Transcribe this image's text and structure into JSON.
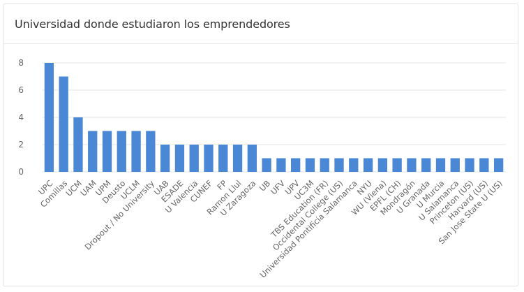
{
  "card": {
    "title": "Universidad donde estudiaron los emprendedores"
  },
  "colors": {
    "bar": "#4a87d4",
    "grid": "#e6e6e6",
    "axis_text": "#666666"
  },
  "chart_data": {
    "type": "bar",
    "title": "Universidad donde estudiaron los emprendedores",
    "xlabel": "",
    "ylabel": "",
    "ylim": [
      0,
      8
    ],
    "yticks": [
      0,
      2,
      4,
      6,
      8
    ],
    "grid": true,
    "categories": [
      "UPC",
      "Comillas",
      "UCM",
      "UAM",
      "UPM",
      "Deusto",
      "UCLM",
      "Dropout / No University",
      "UAB",
      "ESADE",
      "U Valencia",
      "CUNEF",
      "FP",
      "Ramon Llul",
      "U Zaragoza",
      "UB",
      "UFV",
      "UPV",
      "UC3M",
      "TBS Education (FR)",
      "Occidental College (US)",
      "Universidad Pontificia Salamanca",
      "NYU",
      "WU (Viena)",
      "EPFL (CH)",
      "Mondragón",
      "U Granada",
      "U Murcia",
      "U Salamanca",
      "Princeton (US)",
      "Harvard (US)",
      "San Jose State U (US)"
    ],
    "values": [
      8,
      7,
      4,
      3,
      3,
      3,
      3,
      3,
      2,
      2,
      2,
      2,
      2,
      2,
      2,
      1,
      1,
      1,
      1,
      1,
      1,
      1,
      1,
      1,
      1,
      1,
      1,
      1,
      1,
      1,
      1,
      1
    ]
  }
}
